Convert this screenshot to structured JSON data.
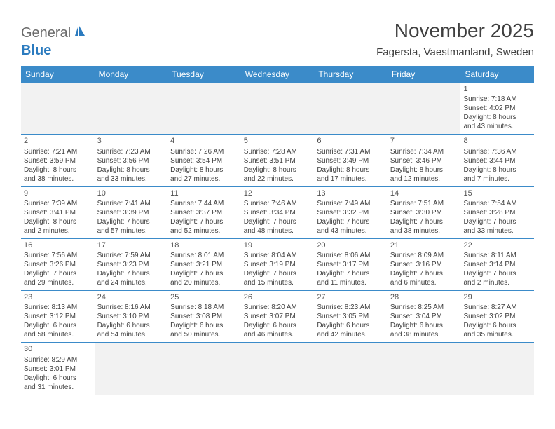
{
  "logo": {
    "textGray": "General",
    "textBlue": "Blue"
  },
  "title": "November 2025",
  "location": "Fagersta, Vaestmanland, Sweden",
  "colors": {
    "headerBg": "#3b8bc9",
    "headerText": "#ffffff",
    "blankBg": "#f2f2f2",
    "rowBorder": "#3b8bc9",
    "bodyText": "#404040",
    "logoGray": "#6b6b6b",
    "logoBlue": "#2b7bbf"
  },
  "dayHeaders": [
    "Sunday",
    "Monday",
    "Tuesday",
    "Wednesday",
    "Thursday",
    "Friday",
    "Saturday"
  ],
  "weeks": [
    [
      {
        "blank": true
      },
      {
        "blank": true
      },
      {
        "blank": true
      },
      {
        "blank": true
      },
      {
        "blank": true
      },
      {
        "blank": true
      },
      {
        "num": "1",
        "sunrise": "Sunrise: 7:18 AM",
        "sunset": "Sunset: 4:02 PM",
        "d1": "Daylight: 8 hours",
        "d2": "and 43 minutes."
      }
    ],
    [
      {
        "num": "2",
        "sunrise": "Sunrise: 7:21 AM",
        "sunset": "Sunset: 3:59 PM",
        "d1": "Daylight: 8 hours",
        "d2": "and 38 minutes."
      },
      {
        "num": "3",
        "sunrise": "Sunrise: 7:23 AM",
        "sunset": "Sunset: 3:56 PM",
        "d1": "Daylight: 8 hours",
        "d2": "and 33 minutes."
      },
      {
        "num": "4",
        "sunrise": "Sunrise: 7:26 AM",
        "sunset": "Sunset: 3:54 PM",
        "d1": "Daylight: 8 hours",
        "d2": "and 27 minutes."
      },
      {
        "num": "5",
        "sunrise": "Sunrise: 7:28 AM",
        "sunset": "Sunset: 3:51 PM",
        "d1": "Daylight: 8 hours",
        "d2": "and 22 minutes."
      },
      {
        "num": "6",
        "sunrise": "Sunrise: 7:31 AM",
        "sunset": "Sunset: 3:49 PM",
        "d1": "Daylight: 8 hours",
        "d2": "and 17 minutes."
      },
      {
        "num": "7",
        "sunrise": "Sunrise: 7:34 AM",
        "sunset": "Sunset: 3:46 PM",
        "d1": "Daylight: 8 hours",
        "d2": "and 12 minutes."
      },
      {
        "num": "8",
        "sunrise": "Sunrise: 7:36 AM",
        "sunset": "Sunset: 3:44 PM",
        "d1": "Daylight: 8 hours",
        "d2": "and 7 minutes."
      }
    ],
    [
      {
        "num": "9",
        "sunrise": "Sunrise: 7:39 AM",
        "sunset": "Sunset: 3:41 PM",
        "d1": "Daylight: 8 hours",
        "d2": "and 2 minutes."
      },
      {
        "num": "10",
        "sunrise": "Sunrise: 7:41 AM",
        "sunset": "Sunset: 3:39 PM",
        "d1": "Daylight: 7 hours",
        "d2": "and 57 minutes."
      },
      {
        "num": "11",
        "sunrise": "Sunrise: 7:44 AM",
        "sunset": "Sunset: 3:37 PM",
        "d1": "Daylight: 7 hours",
        "d2": "and 52 minutes."
      },
      {
        "num": "12",
        "sunrise": "Sunrise: 7:46 AM",
        "sunset": "Sunset: 3:34 PM",
        "d1": "Daylight: 7 hours",
        "d2": "and 48 minutes."
      },
      {
        "num": "13",
        "sunrise": "Sunrise: 7:49 AM",
        "sunset": "Sunset: 3:32 PM",
        "d1": "Daylight: 7 hours",
        "d2": "and 43 minutes."
      },
      {
        "num": "14",
        "sunrise": "Sunrise: 7:51 AM",
        "sunset": "Sunset: 3:30 PM",
        "d1": "Daylight: 7 hours",
        "d2": "and 38 minutes."
      },
      {
        "num": "15",
        "sunrise": "Sunrise: 7:54 AM",
        "sunset": "Sunset: 3:28 PM",
        "d1": "Daylight: 7 hours",
        "d2": "and 33 minutes."
      }
    ],
    [
      {
        "num": "16",
        "sunrise": "Sunrise: 7:56 AM",
        "sunset": "Sunset: 3:26 PM",
        "d1": "Daylight: 7 hours",
        "d2": "and 29 minutes."
      },
      {
        "num": "17",
        "sunrise": "Sunrise: 7:59 AM",
        "sunset": "Sunset: 3:23 PM",
        "d1": "Daylight: 7 hours",
        "d2": "and 24 minutes."
      },
      {
        "num": "18",
        "sunrise": "Sunrise: 8:01 AM",
        "sunset": "Sunset: 3:21 PM",
        "d1": "Daylight: 7 hours",
        "d2": "and 20 minutes."
      },
      {
        "num": "19",
        "sunrise": "Sunrise: 8:04 AM",
        "sunset": "Sunset: 3:19 PM",
        "d1": "Daylight: 7 hours",
        "d2": "and 15 minutes."
      },
      {
        "num": "20",
        "sunrise": "Sunrise: 8:06 AM",
        "sunset": "Sunset: 3:17 PM",
        "d1": "Daylight: 7 hours",
        "d2": "and 11 minutes."
      },
      {
        "num": "21",
        "sunrise": "Sunrise: 8:09 AM",
        "sunset": "Sunset: 3:16 PM",
        "d1": "Daylight: 7 hours",
        "d2": "and 6 minutes."
      },
      {
        "num": "22",
        "sunrise": "Sunrise: 8:11 AM",
        "sunset": "Sunset: 3:14 PM",
        "d1": "Daylight: 7 hours",
        "d2": "and 2 minutes."
      }
    ],
    [
      {
        "num": "23",
        "sunrise": "Sunrise: 8:13 AM",
        "sunset": "Sunset: 3:12 PM",
        "d1": "Daylight: 6 hours",
        "d2": "and 58 minutes."
      },
      {
        "num": "24",
        "sunrise": "Sunrise: 8:16 AM",
        "sunset": "Sunset: 3:10 PM",
        "d1": "Daylight: 6 hours",
        "d2": "and 54 minutes."
      },
      {
        "num": "25",
        "sunrise": "Sunrise: 8:18 AM",
        "sunset": "Sunset: 3:08 PM",
        "d1": "Daylight: 6 hours",
        "d2": "and 50 minutes."
      },
      {
        "num": "26",
        "sunrise": "Sunrise: 8:20 AM",
        "sunset": "Sunset: 3:07 PM",
        "d1": "Daylight: 6 hours",
        "d2": "and 46 minutes."
      },
      {
        "num": "27",
        "sunrise": "Sunrise: 8:23 AM",
        "sunset": "Sunset: 3:05 PM",
        "d1": "Daylight: 6 hours",
        "d2": "and 42 minutes."
      },
      {
        "num": "28",
        "sunrise": "Sunrise: 8:25 AM",
        "sunset": "Sunset: 3:04 PM",
        "d1": "Daylight: 6 hours",
        "d2": "and 38 minutes."
      },
      {
        "num": "29",
        "sunrise": "Sunrise: 8:27 AM",
        "sunset": "Sunset: 3:02 PM",
        "d1": "Daylight: 6 hours",
        "d2": "and 35 minutes."
      }
    ],
    [
      {
        "num": "30",
        "sunrise": "Sunrise: 8:29 AM",
        "sunset": "Sunset: 3:01 PM",
        "d1": "Daylight: 6 hours",
        "d2": "and 31 minutes."
      },
      {
        "blank": true
      },
      {
        "blank": true
      },
      {
        "blank": true
      },
      {
        "blank": true
      },
      {
        "blank": true
      },
      {
        "blank": true
      }
    ]
  ]
}
